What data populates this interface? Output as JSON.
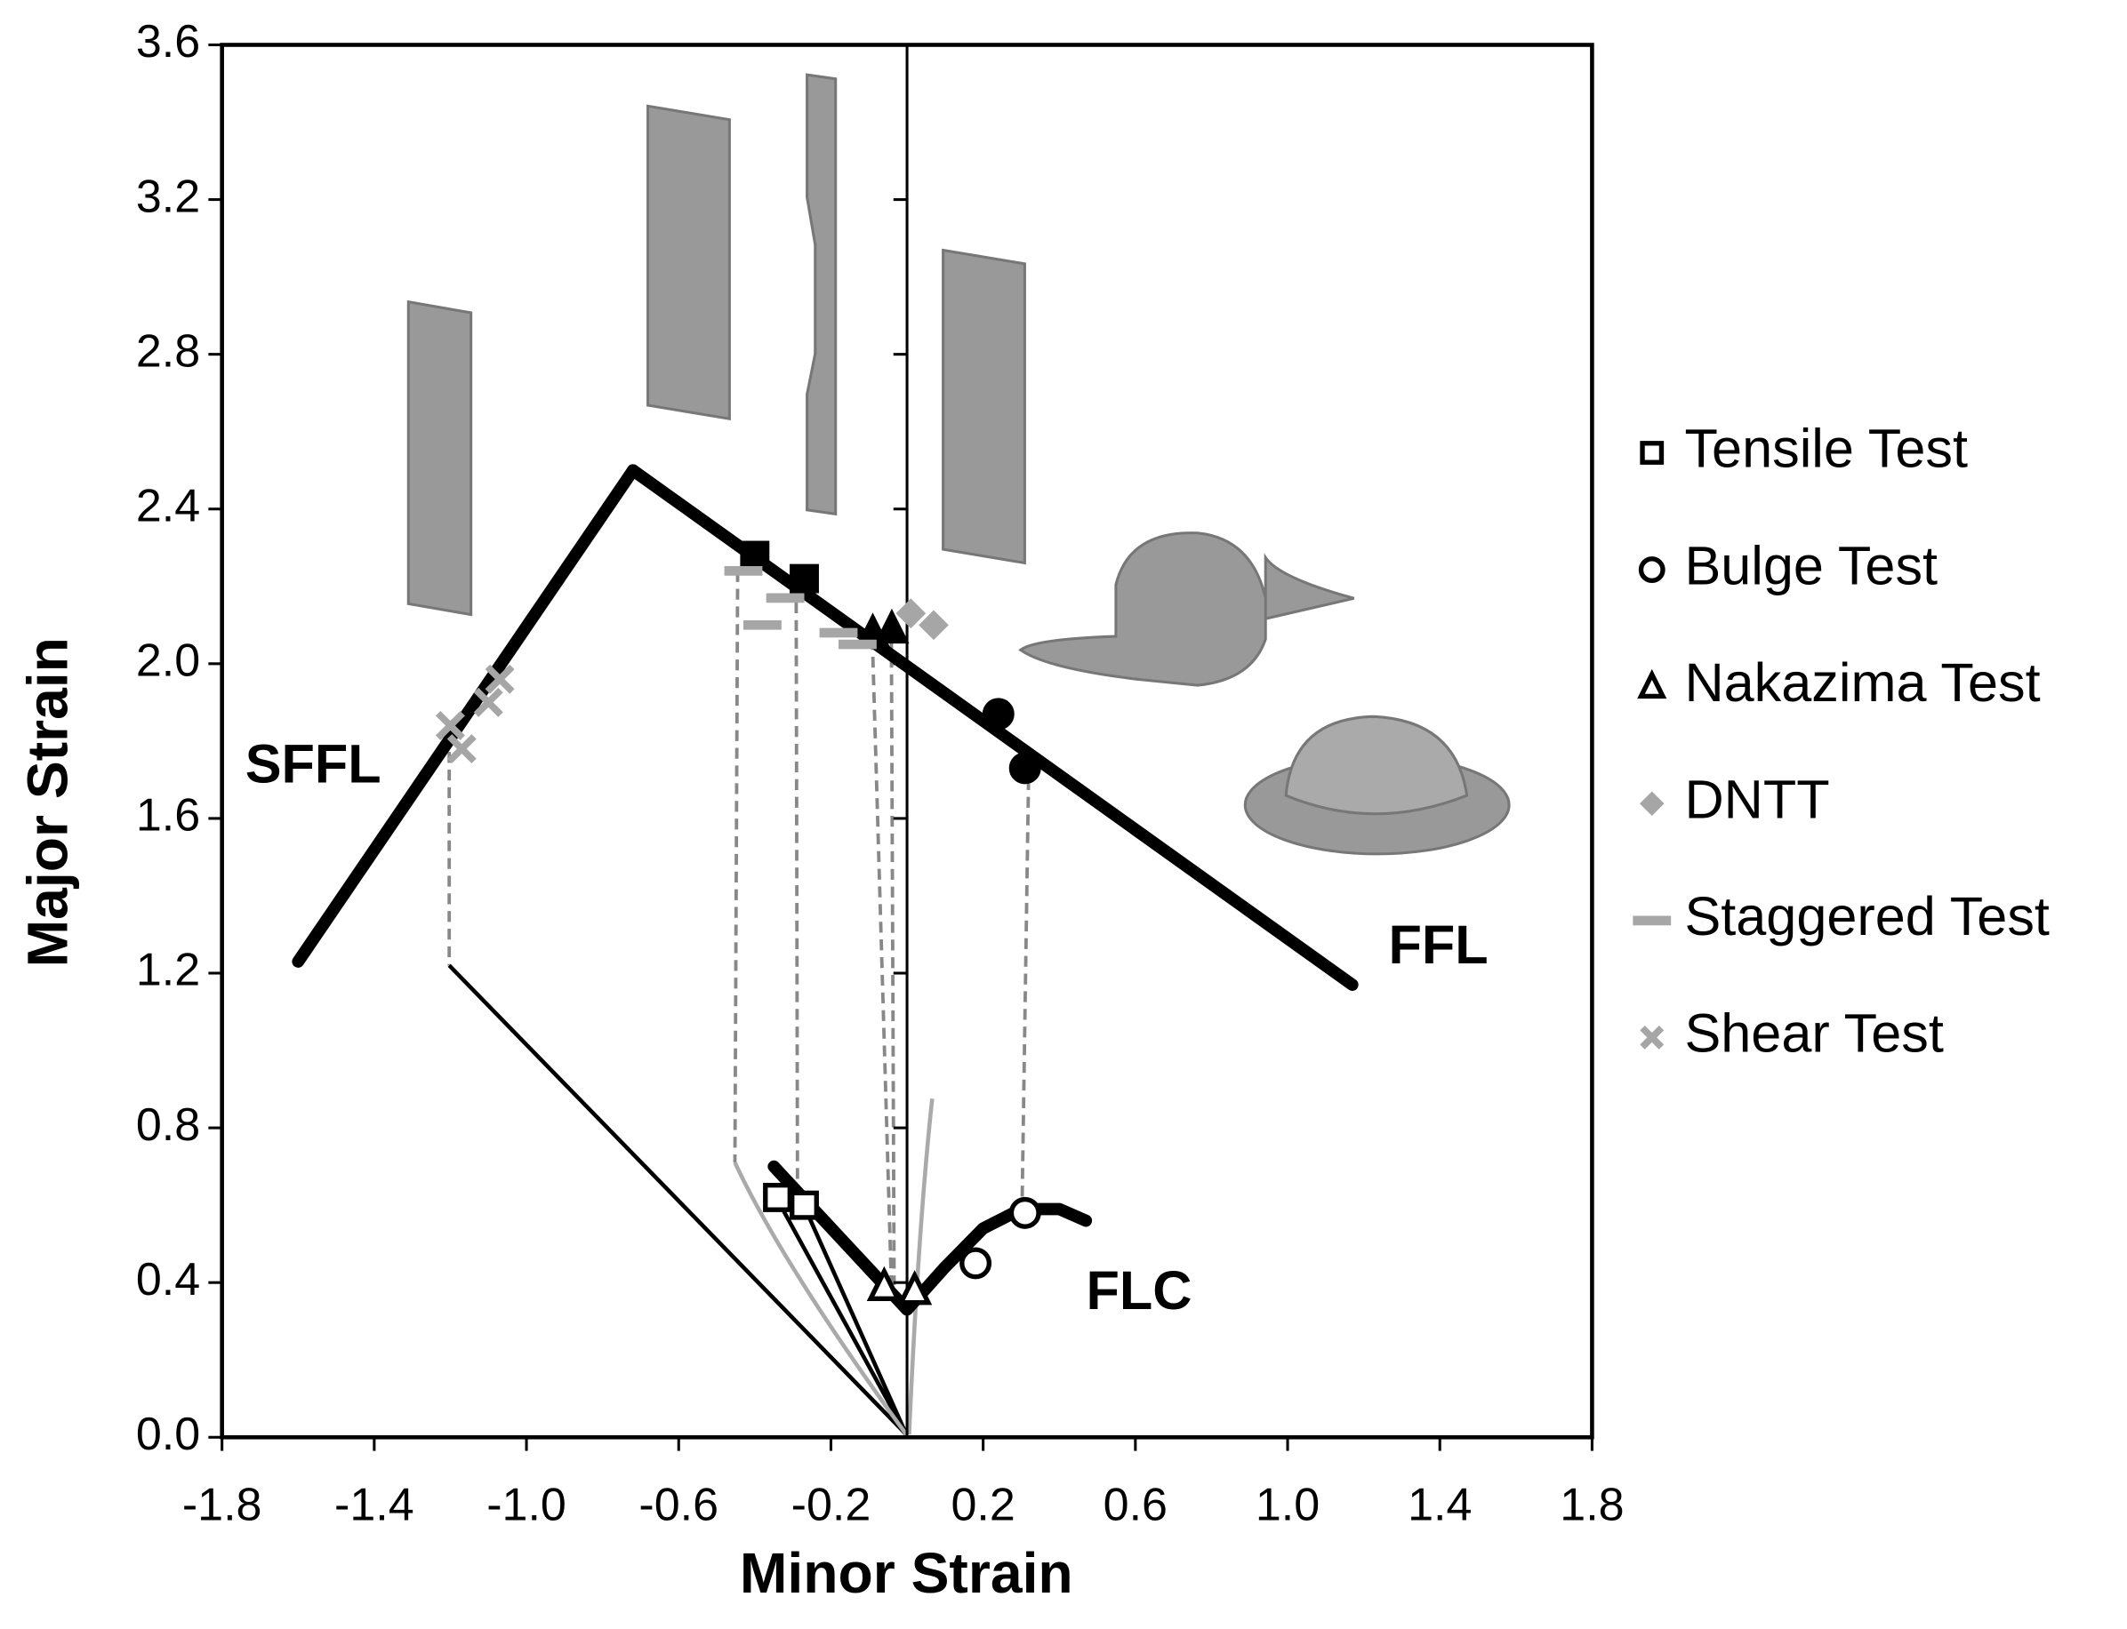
{
  "chart_data": {
    "type": "scatter",
    "xlabel": "Minor Strain",
    "ylabel": "Major Strain",
    "xlim": [
      -1.8,
      1.8
    ],
    "ylim": [
      0,
      3.6
    ],
    "xticks": [
      -1.8,
      -1.4,
      {
        "value": -1,
        "label": "-1.0"
      },
      -0.6,
      -0.2,
      0.2,
      0.6,
      {
        "value": 1,
        "label": "1.0"
      },
      1.4,
      1.8
    ],
    "yticks": [
      {
        "value": 0,
        "label": "0.0"
      },
      0.4,
      0.8,
      1.2,
      1.6,
      {
        "value": 2,
        "label": "2.0"
      },
      2.4,
      2.8,
      3.2,
      3.6
    ],
    "curves": [
      {
        "label": "SFFL",
        "x": [
          -1.6,
          -0.72
        ],
        "values": [
          1.23,
          2.5
        ]
      },
      {
        "label": "FFL",
        "x": [
          -0.72,
          1.17
        ],
        "values": [
          2.5,
          1.17
        ]
      },
      {
        "label": "FLC",
        "x": [
          -0.35,
          0,
          0.1,
          0.2,
          0.3,
          0.4,
          0.47
        ],
        "values": [
          0.7,
          0.33,
          0.44,
          0.54,
          0.59,
          0.59,
          0.56
        ]
      }
    ],
    "series": [
      {
        "name": "Tensile Test",
        "marker": "square",
        "color": "#000000",
        "x": [
          -0.34,
          -0.27
        ],
        "values": [
          0.62,
          0.6
        ],
        "fracture_x": [
          -0.4,
          -0.27
        ],
        "fracture_values": [
          2.28,
          2.22
        ]
      },
      {
        "name": "Bulge Test",
        "marker": "circle",
        "color": "#000000",
        "x": [
          0.18,
          0.31
        ],
        "values": [
          0.45,
          0.58
        ],
        "fracture_x": [
          0.24,
          0.31
        ],
        "fracture_values": [
          1.87,
          1.73
        ]
      },
      {
        "name": "Nakazima Test",
        "marker": "triangle",
        "color": "#000000",
        "x": [
          -0.06,
          0.02
        ],
        "values": [
          0.39,
          0.38
        ],
        "fracture_x": [
          -0.04,
          -0.09
        ],
        "fracture_values": [
          2.09,
          2.08
        ]
      },
      {
        "name": "DNTT",
        "marker": "diamond",
        "color": "#a6a6a6",
        "x": [
          0.01,
          0.07
        ],
        "values": [
          2.13,
          2.1
        ]
      },
      {
        "name": "Staggered Test",
        "marker": "dash",
        "color": "#a6a6a6",
        "x": [
          -0.43,
          -0.32,
          -0.38,
          -0.18,
          -0.13
        ],
        "values": [
          2.24,
          2.17,
          2.1,
          2.08,
          2.05
        ]
      },
      {
        "name": "Shear Test",
        "marker": "cross",
        "color": "#a6a6a6",
        "x": [
          -1.2,
          -1.17,
          -1.07,
          -1.1
        ],
        "values": [
          1.84,
          1.78,
          1.96,
          1.9
        ]
      }
    ]
  }
}
